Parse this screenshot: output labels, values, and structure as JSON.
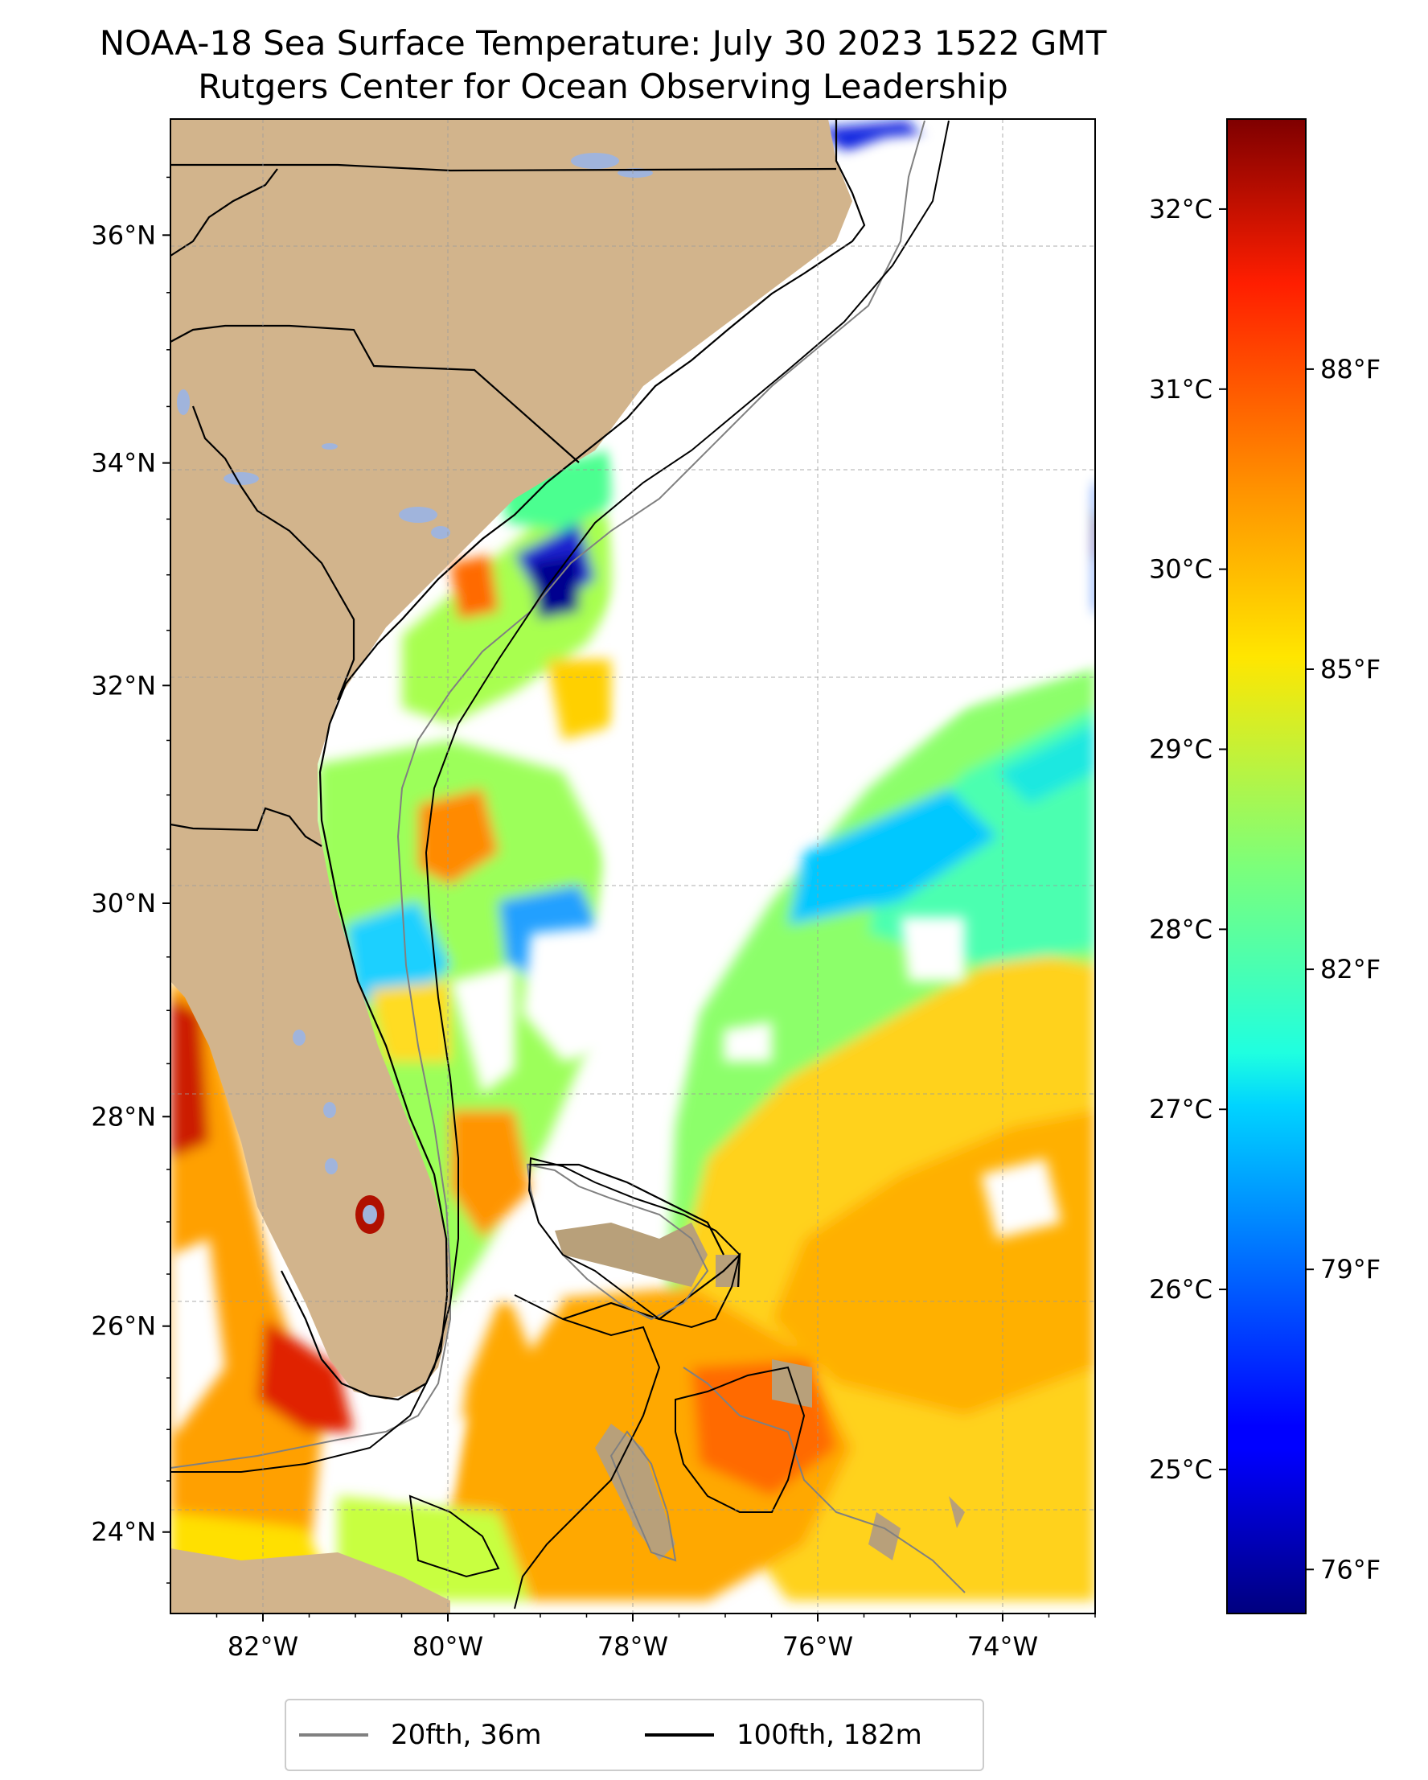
{
  "title": {
    "line1": "NOAA-18 Sea Surface Temperature: July 30 2023 1522 GMT",
    "line2": "Rutgers Center for Ocean Observing Leadership"
  },
  "map": {
    "lon_range": [
      -83,
      -73
    ],
    "lat_range": [
      23.2,
      37
    ],
    "lat_ticks": [
      {
        "value": 24,
        "label": "24°N"
      },
      {
        "value": 26,
        "label": "26°N"
      },
      {
        "value": 28,
        "label": "28°N"
      },
      {
        "value": 30,
        "label": "30°N"
      },
      {
        "value": 32,
        "label": "32°N"
      },
      {
        "value": 34,
        "label": "34°N"
      },
      {
        "value": 36,
        "label": "36°N"
      }
    ],
    "lon_ticks": [
      {
        "value": -82,
        "label": "82°W"
      },
      {
        "value": -80,
        "label": "80°W"
      },
      {
        "value": -78,
        "label": "78°W"
      },
      {
        "value": -76,
        "label": "76°W"
      },
      {
        "value": -74,
        "label": "74°W"
      }
    ],
    "land_color": "#d2b48c",
    "lake_color": "#a0b4dc",
    "grid": true
  },
  "colorbar": {
    "colormap": "jet",
    "celsius_range": [
      24.2,
      32.5
    ],
    "celsius_ticks": [
      {
        "value": 25,
        "label": "25°C"
      },
      {
        "value": 26,
        "label": "26°C"
      },
      {
        "value": 27,
        "label": "27°C"
      },
      {
        "value": 28,
        "label": "28°C"
      },
      {
        "value": 29,
        "label": "29°C"
      },
      {
        "value": 30,
        "label": "30°C"
      },
      {
        "value": 31,
        "label": "31°C"
      },
      {
        "value": 32,
        "label": "32°C"
      }
    ],
    "fahrenheit_ticks": [
      {
        "value": 76,
        "label": "76°F"
      },
      {
        "value": 79,
        "label": "79°F"
      },
      {
        "value": 82,
        "label": "82°F"
      },
      {
        "value": 85,
        "label": "85°F"
      },
      {
        "value": 88,
        "label": "88°F"
      }
    ]
  },
  "legend": [
    {
      "label": "20fth, 36m",
      "color": "#808080"
    },
    {
      "label": "100fth, 182m",
      "color": "#000000"
    }
  ]
}
